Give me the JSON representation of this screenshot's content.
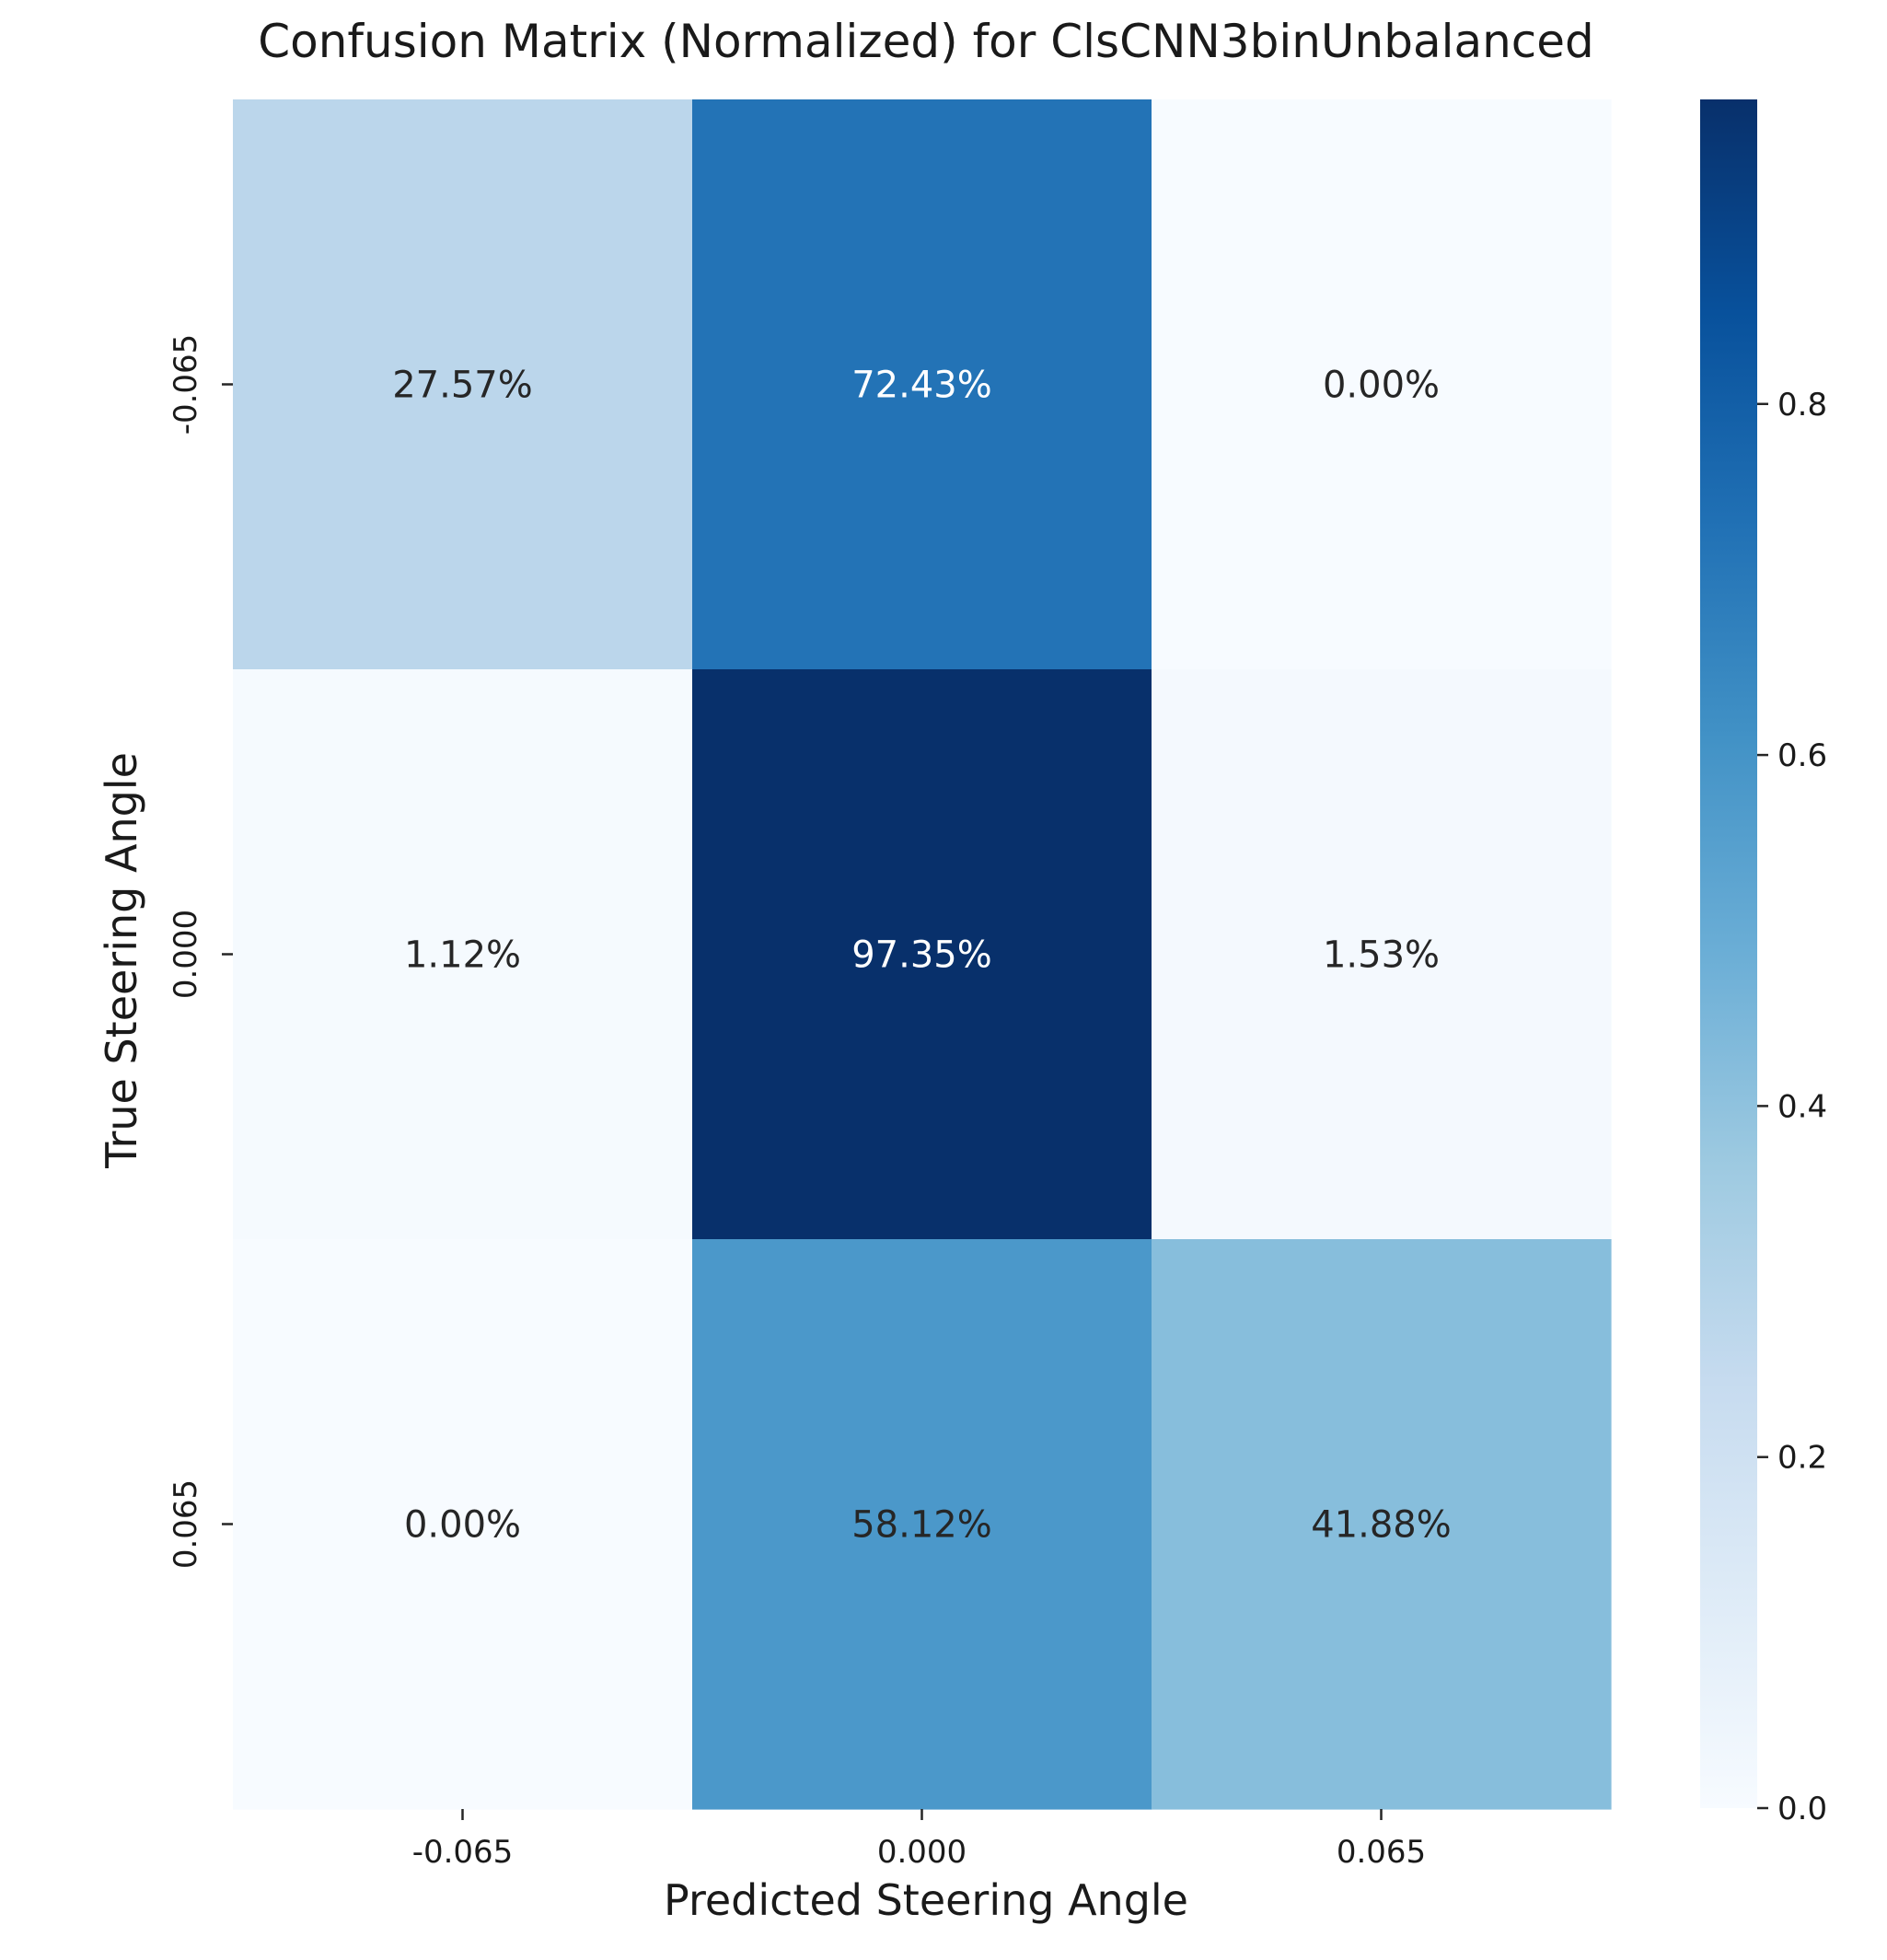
{
  "chart_data": {
    "type": "heatmap",
    "title": "Confusion Matrix (Normalized) for ClsCNN3binUnbalanced",
    "xlabel": "Predicted Steering Angle",
    "ylabel": "True Steering Angle",
    "x_categories": [
      "-0.065",
      "0.000",
      "0.065"
    ],
    "y_categories": [
      "-0.065",
      "0.000",
      "0.065"
    ],
    "values": [
      [
        0.2757,
        0.7243,
        0.0
      ],
      [
        0.0112,
        0.9735,
        0.0153
      ],
      [
        0.0,
        0.5812,
        0.4188
      ]
    ],
    "annotations": [
      [
        "27.57%",
        "72.43%",
        "0.00%"
      ],
      [
        "1.12%",
        "97.35%",
        "1.53%"
      ],
      [
        "0.00%",
        "58.12%",
        "41.88%"
      ]
    ],
    "colormap": "Blues",
    "colorbar": {
      "vmin": 0.0,
      "vmax": 0.9735,
      "ticks": [
        0.0,
        0.2,
        0.4,
        0.6,
        0.8
      ],
      "tick_labels": [
        "0.0",
        "0.2",
        "0.4",
        "0.6",
        "0.8"
      ]
    },
    "annotation_colors": {
      "light": "#ffffff",
      "dark": "#262626"
    }
  }
}
